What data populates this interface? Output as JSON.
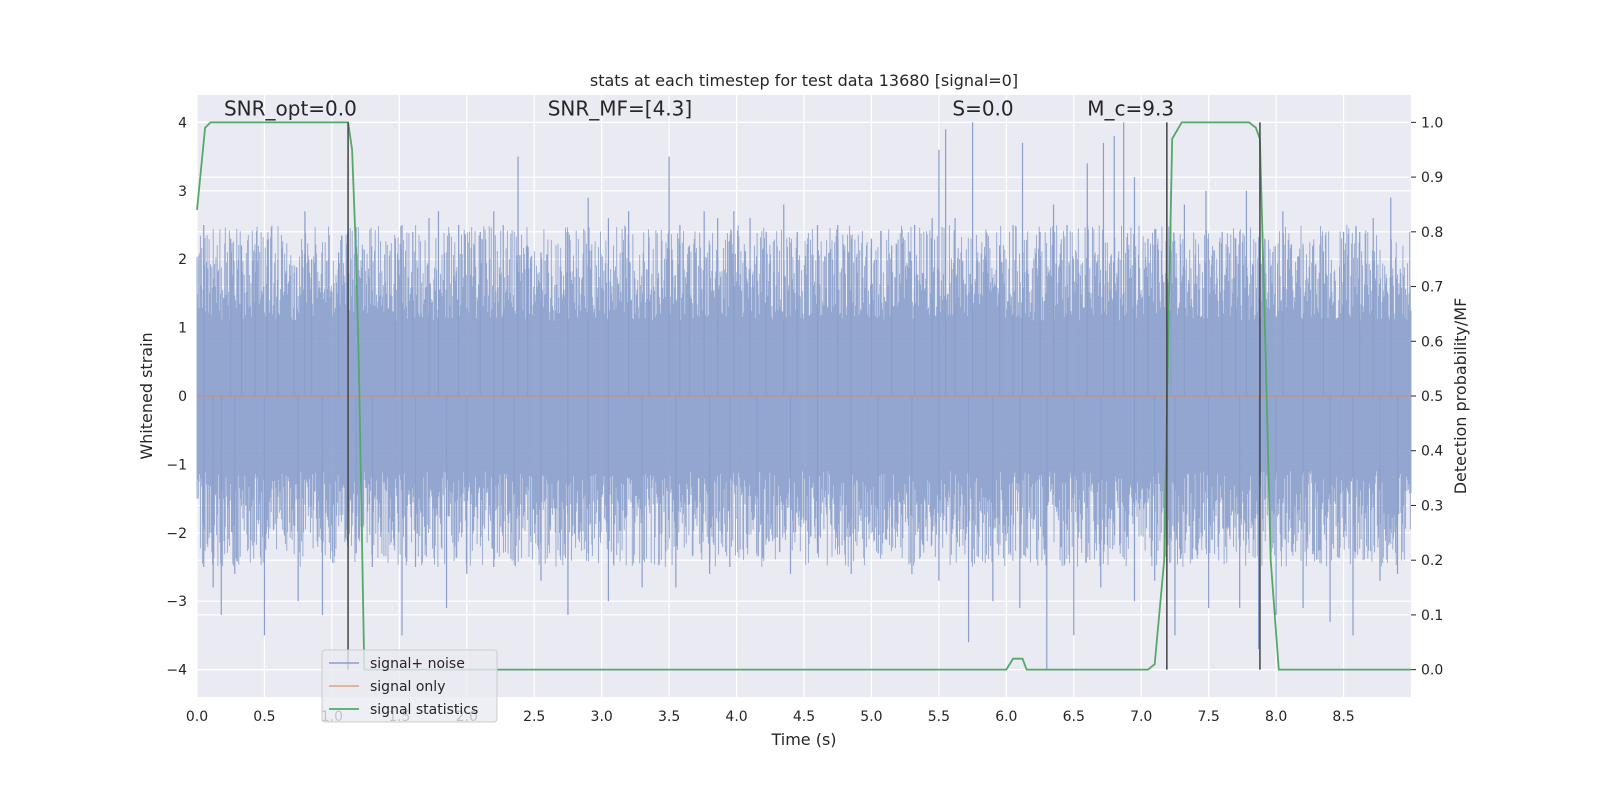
{
  "chart_data": {
    "type": "line",
    "title": "stats at each timestep for test data 13680 [signal=0]",
    "xlabel": "Time (s)",
    "ylabel": "Whitened strain",
    "y2label": "Detection probability/MF",
    "xlim": [
      0,
      9.0
    ],
    "ylim": [
      -4.4,
      4.4
    ],
    "y2lim": [
      -0.05,
      1.05
    ],
    "xticks": [
      "0.0",
      "0.5",
      "1.0",
      "1.5",
      "2.0",
      "2.5",
      "3.0",
      "3.5",
      "4.0",
      "4.5",
      "5.0",
      "5.5",
      "6.0",
      "6.5",
      "7.0",
      "7.5",
      "8.0",
      "8.5"
    ],
    "yticks": [
      "−4",
      "−3",
      "−2",
      "−1",
      "0",
      "1",
      "2",
      "3",
      "4"
    ],
    "y2ticks": [
      "0.0",
      "0.1",
      "0.2",
      "0.3",
      "0.4",
      "0.5",
      "0.6",
      "0.7",
      "0.8",
      "0.9",
      "1.0"
    ],
    "grid": true,
    "legend_position": "lower-left",
    "annotations": [
      {
        "text": "SNR_opt=0.0",
        "x": 0.2,
        "y": 4.1
      },
      {
        "text": "SNR_MF=[4.3]",
        "x": 2.6,
        "y": 4.1
      },
      {
        "text": "S=0.0",
        "x": 5.6,
        "y": 4.1
      },
      {
        "text": "M_c=9.3",
        "x": 6.6,
        "y": 4.1
      }
    ],
    "vertical_lines": [
      1.12,
      7.19,
      7.88
    ],
    "colors": {
      "noise": "#8a9ecb",
      "signal": "#dd8452",
      "stats": "#55a868",
      "vline": "#444444",
      "bg": "#eaeaf2"
    },
    "series": [
      {
        "name": "signal+ noise",
        "kind": "noise",
        "note_amplitude_envelope": 2.0,
        "spikes_up": [
          [
            0.05,
            2.5
          ],
          [
            0.25,
            2.3
          ],
          [
            0.33,
            2.2
          ],
          [
            0.43,
            2.1
          ],
          [
            0.52,
            1.9
          ],
          [
            0.6,
            2.0
          ],
          [
            0.72,
            1.8
          ],
          [
            0.8,
            2.7
          ],
          [
            0.85,
            2.0
          ],
          [
            1.05,
            2.1
          ],
          [
            1.12,
            2.4
          ],
          [
            1.47,
            2.3
          ],
          [
            1.52,
            2.5
          ],
          [
            1.6,
            2.4
          ],
          [
            1.72,
            2.6
          ],
          [
            1.79,
            2.7
          ],
          [
            1.94,
            2.5
          ],
          [
            2.1,
            2.4
          ],
          [
            2.2,
            2.7
          ],
          [
            2.27,
            2.5
          ],
          [
            2.38,
            3.5
          ],
          [
            2.45,
            2.2
          ],
          [
            2.55,
            2.1
          ],
          [
            2.75,
            2.4
          ],
          [
            2.9,
            2.9
          ],
          [
            3.05,
            2.6
          ],
          [
            3.2,
            2.7
          ],
          [
            3.35,
            2.2
          ],
          [
            3.5,
            3.5
          ],
          [
            3.58,
            2.5
          ],
          [
            3.65,
            2.2
          ],
          [
            3.76,
            2.7
          ],
          [
            3.86,
            2.6
          ],
          [
            3.98,
            2.7
          ],
          [
            4.1,
            2.6
          ],
          [
            4.22,
            2.4
          ],
          [
            4.35,
            2.8
          ],
          [
            4.45,
            2.4
          ],
          [
            4.6,
            2.5
          ],
          [
            4.75,
            2.5
          ],
          [
            4.85,
            2.3
          ],
          [
            5.0,
            2.3
          ],
          [
            5.15,
            2.2
          ],
          [
            5.32,
            2.5
          ],
          [
            5.45,
            2.6
          ],
          [
            5.5,
            3.6
          ],
          [
            5.55,
            3.9
          ],
          [
            5.62,
            2.6
          ],
          [
            5.75,
            4.0
          ],
          [
            5.85,
            2.4
          ],
          [
            5.95,
            2.2
          ],
          [
            6.05,
            2.5
          ],
          [
            6.12,
            3.7
          ],
          [
            6.25,
            2.4
          ],
          [
            6.35,
            2.8
          ],
          [
            6.45,
            2.5
          ],
          [
            6.6,
            3.4
          ],
          [
            6.72,
            3.7
          ],
          [
            6.8,
            3.8
          ],
          [
            6.87,
            4.0
          ],
          [
            6.95,
            3.2
          ],
          [
            7.05,
            2.3
          ],
          [
            7.22,
            3.0
          ],
          [
            7.32,
            2.8
          ],
          [
            7.48,
            3.0
          ],
          [
            7.6,
            2.4
          ],
          [
            7.7,
            2.3
          ],
          [
            7.78,
            3.0
          ],
          [
            7.9,
            2.4
          ],
          [
            8.05,
            2.7
          ],
          [
            8.2,
            2.2
          ],
          [
            8.35,
            2.1
          ],
          [
            8.5,
            2.4
          ],
          [
            8.62,
            2.4
          ],
          [
            8.72,
            2.6
          ],
          [
            8.85,
            2.9
          ]
        ],
        "spikes_down": [
          [
            0.05,
            -2.5
          ],
          [
            0.12,
            -2.8
          ],
          [
            0.18,
            -3.2
          ],
          [
            0.28,
            -2.6
          ],
          [
            0.5,
            -3.5
          ],
          [
            0.75,
            -3.0
          ],
          [
            0.93,
            -3.2
          ],
          [
            1.18,
            -2.3
          ],
          [
            1.3,
            -2.5
          ],
          [
            1.52,
            -3.5
          ],
          [
            1.62,
            -2.5
          ],
          [
            1.85,
            -3.1
          ],
          [
            2.0,
            -2.6
          ],
          [
            2.2,
            -2.5
          ],
          [
            2.35,
            -2.4
          ],
          [
            2.55,
            -2.7
          ],
          [
            2.75,
            -3.2
          ],
          [
            2.9,
            -2.3
          ],
          [
            3.05,
            -3.0
          ],
          [
            3.3,
            -2.8
          ],
          [
            3.55,
            -2.8
          ],
          [
            3.8,
            -2.6
          ],
          [
            3.95,
            -2.5
          ],
          [
            4.15,
            -2.3
          ],
          [
            4.4,
            -2.6
          ],
          [
            4.6,
            -2.3
          ],
          [
            4.85,
            -2.6
          ],
          [
            5.05,
            -2.3
          ],
          [
            5.3,
            -2.6
          ],
          [
            5.5,
            -2.7
          ],
          [
            5.72,
            -3.6
          ],
          [
            5.9,
            -3.0
          ],
          [
            6.1,
            -3.1
          ],
          [
            6.3,
            -4.0
          ],
          [
            6.5,
            -3.5
          ],
          [
            6.7,
            -2.8
          ],
          [
            6.95,
            -3.0
          ],
          [
            7.1,
            -2.7
          ],
          [
            7.25,
            -3.5
          ],
          [
            7.5,
            -3.1
          ],
          [
            7.73,
            -3.1
          ],
          [
            7.87,
            -3.7
          ],
          [
            8.0,
            -3.2
          ],
          [
            8.2,
            -3.1
          ],
          [
            8.4,
            -3.3
          ],
          [
            8.57,
            -3.5
          ],
          [
            8.77,
            -2.7
          ],
          [
            8.9,
            -2.6
          ]
        ]
      },
      {
        "name": "signal only",
        "kind": "signal",
        "x": [
          0,
          9.0
        ],
        "y": [
          0,
          0
        ]
      },
      {
        "name": "signal statistics",
        "kind": "stats",
        "x": [
          0.0,
          0.06,
          0.1,
          0.2,
          1.0,
          1.12,
          1.15,
          1.18,
          1.2,
          1.24,
          1.3,
          6.0,
          6.05,
          6.12,
          6.15,
          6.3,
          7.05,
          7.1,
          7.17,
          7.2,
          7.23,
          7.3,
          7.8,
          7.85,
          7.88,
          7.92,
          7.96,
          8.02,
          8.1,
          9.0
        ],
        "y": [
          0.84,
          0.99,
          1.0,
          1.0,
          1.0,
          1.0,
          0.95,
          0.75,
          0.55,
          0.0,
          0.0,
          0.0,
          0.02,
          0.02,
          0.0,
          0.0,
          0.0,
          0.01,
          0.2,
          0.6,
          0.97,
          1.0,
          1.0,
          0.99,
          0.97,
          0.6,
          0.2,
          0.0,
          0.0,
          0.0
        ]
      }
    ]
  }
}
